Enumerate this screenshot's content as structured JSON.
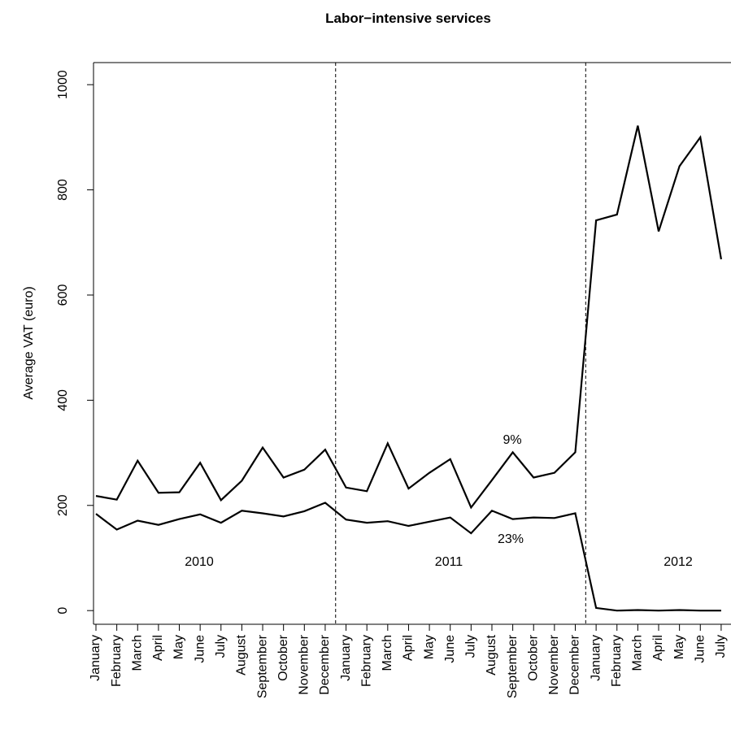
{
  "chart_data": {
    "type": "line",
    "title": "Labor−intensive services",
    "y_label": "Average VAT (euro)",
    "categories": [
      "January",
      "February",
      "March",
      "April",
      "May",
      "June",
      "July",
      "August",
      "September",
      "October",
      "November",
      "December",
      "January",
      "February",
      "March",
      "April",
      "May",
      "June",
      "July",
      "August",
      "September",
      "October",
      "November",
      "December",
      "January",
      "February",
      "March",
      "April",
      "May",
      "June",
      "July"
    ],
    "series": [
      {
        "name": "9%",
        "color": "#000000",
        "values": [
          218,
          211,
          285,
          224,
          225,
          281,
          210,
          247,
          310,
          253,
          268,
          306,
          234,
          227,
          318,
          232,
          262,
          288,
          196,
          248,
          301,
          253,
          262,
          301,
          742,
          753,
          922,
          721,
          845,
          900,
          668
        ]
      },
      {
        "name": "23%",
        "color": "#000000",
        "values": [
          184,
          154,
          171,
          163,
          174,
          183,
          167,
          190,
          185,
          179,
          189,
          205,
          173,
          167,
          170,
          161,
          169,
          177,
          147,
          190,
          174,
          177,
          176,
          185,
          5,
          0,
          1,
          0,
          1,
          0,
          0
        ]
      }
    ],
    "annotations": [
      "2010",
      "2011",
      "2012"
    ],
    "ylim": [
      -26,
      1042
    ],
    "yticks": [
      0,
      200,
      400,
      600,
      800,
      1000
    ]
  }
}
